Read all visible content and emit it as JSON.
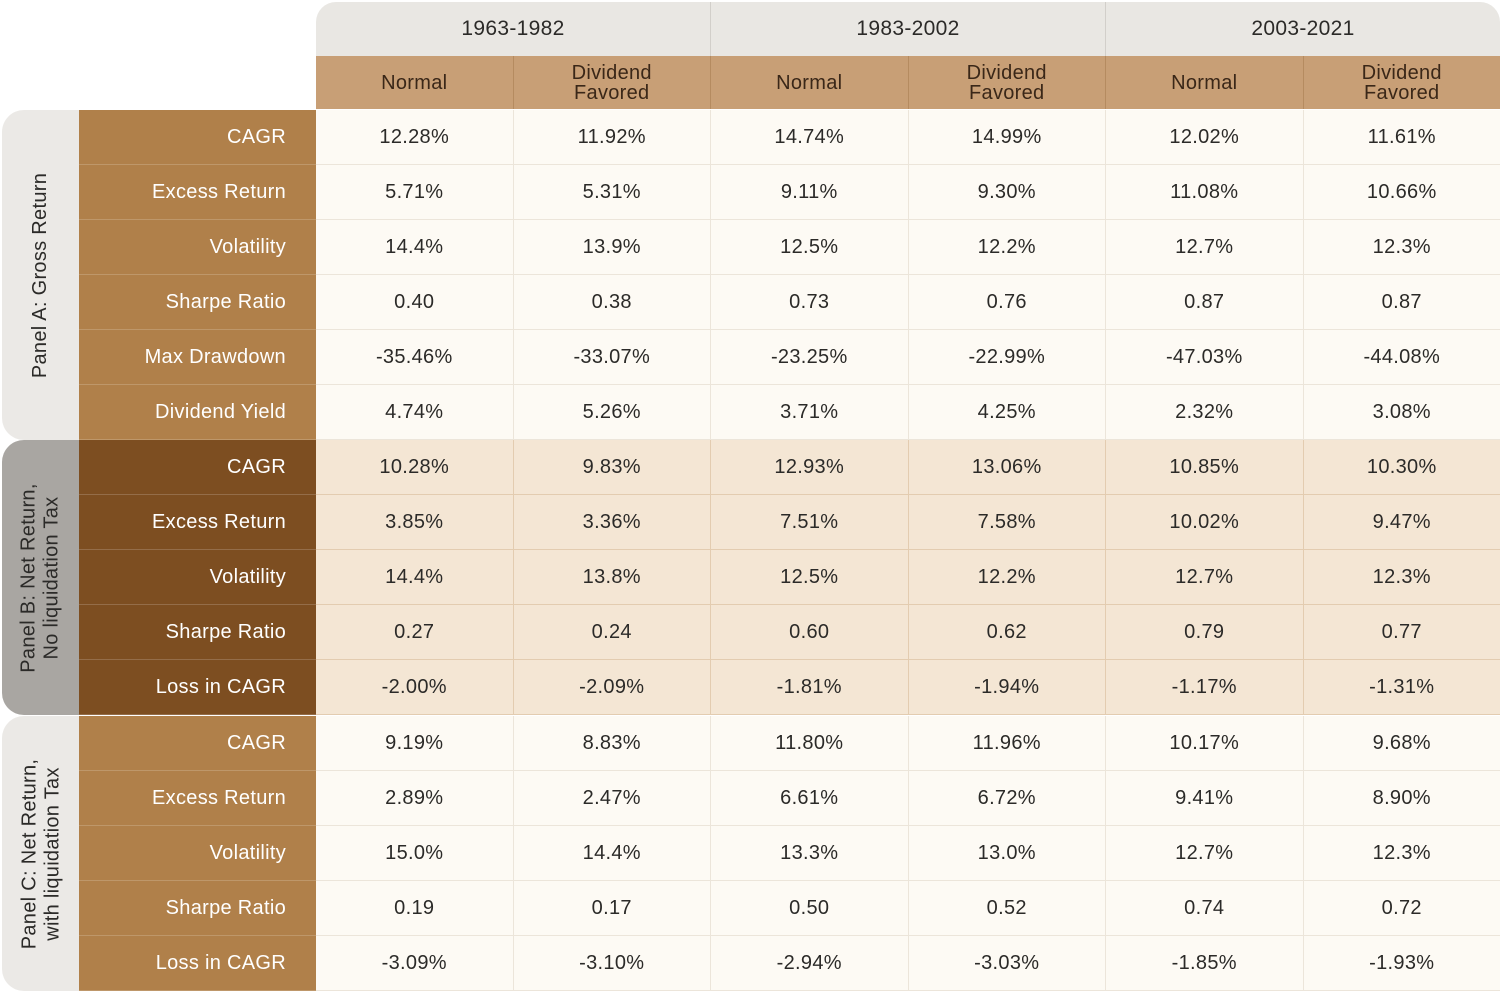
{
  "periods": [
    "1963-1982",
    "1983-2002",
    "2003-2021"
  ],
  "subheaders": [
    [
      "Normal"
    ],
    [
      "Dividend",
      "Favored"
    ],
    [
      "Normal"
    ],
    [
      "Dividend",
      "Favored"
    ],
    [
      "Normal"
    ],
    [
      "Dividend",
      "Favored"
    ]
  ],
  "colors": {
    "panel_a_label_bg": "#ebe9e6",
    "panel_b_label_bg": "#a9a6a2",
    "panel_c_label_bg": "#ebe9e6",
    "row_label_light": "#b0804a",
    "row_label_dark": "#7d4e21",
    "subheader_bg": "#c89f76",
    "period_header_bg": "#e9e7e3"
  },
  "panels": [
    {
      "label": [
        "Panel A: Gross Return"
      ],
      "rows": [
        {
          "label": "CAGR",
          "values": [
            "12.28%",
            "11.92%",
            "14.74%",
            "14.99%",
            "12.02%",
            "11.61%"
          ]
        },
        {
          "label": "Excess Return",
          "values": [
            "5.71%",
            "5.31%",
            "9.11%",
            "9.30%",
            "11.08%",
            "10.66%"
          ]
        },
        {
          "label": "Volatility",
          "values": [
            "14.4%",
            "13.9%",
            "12.5%",
            "12.2%",
            "12.7%",
            "12.3%"
          ]
        },
        {
          "label": "Sharpe Ratio",
          "values": [
            "0.40",
            "0.38",
            "0.73",
            "0.76",
            "0.87",
            "0.87"
          ]
        },
        {
          "label": "Max Drawdown",
          "values": [
            "-35.46%",
            "-33.07%",
            "-23.25%",
            "-22.99%",
            "-47.03%",
            "-44.08%"
          ]
        },
        {
          "label": "Dividend Yield",
          "values": [
            "4.74%",
            "5.26%",
            "3.71%",
            "4.25%",
            "2.32%",
            "3.08%"
          ]
        }
      ]
    },
    {
      "label": [
        "Panel B: Net Return,",
        "No liquidation Tax"
      ],
      "rows": [
        {
          "label": "CAGR",
          "values": [
            "10.28%",
            "9.83%",
            "12.93%",
            "13.06%",
            "10.85%",
            "10.30%"
          ]
        },
        {
          "label": "Excess Return",
          "values": [
            "3.85%",
            "3.36%",
            "7.51%",
            "7.58%",
            "10.02%",
            "9.47%"
          ]
        },
        {
          "label": "Volatility",
          "values": [
            "14.4%",
            "13.8%",
            "12.5%",
            "12.2%",
            "12.7%",
            "12.3%"
          ]
        },
        {
          "label": "Sharpe Ratio",
          "values": [
            "0.27",
            "0.24",
            "0.60",
            "0.62",
            "0.79",
            "0.77"
          ]
        },
        {
          "label": "Loss in CAGR",
          "values": [
            "-2.00%",
            "-2.09%",
            "-1.81%",
            "-1.94%",
            "-1.17%",
            "-1.31%"
          ]
        }
      ]
    },
    {
      "label": [
        "Panel C: Net Return,",
        "with liquidation Tax"
      ],
      "rows": [
        {
          "label": "CAGR",
          "values": [
            "9.19%",
            "8.83%",
            "11.80%",
            "11.96%",
            "10.17%",
            "9.68%"
          ]
        },
        {
          "label": "Excess Return",
          "values": [
            "2.89%",
            "2.47%",
            "6.61%",
            "6.72%",
            "9.41%",
            "8.90%"
          ]
        },
        {
          "label": "Volatility",
          "values": [
            "15.0%",
            "14.4%",
            "13.3%",
            "13.0%",
            "12.7%",
            "12.3%"
          ]
        },
        {
          "label": "Sharpe Ratio",
          "values": [
            "0.19",
            "0.17",
            "0.50",
            "0.52",
            "0.74",
            "0.72"
          ]
        },
        {
          "label": "Loss in CAGR",
          "values": [
            "-3.09%",
            "-3.10%",
            "-2.94%",
            "-3.03%",
            "-1.85%",
            "-1.93%"
          ]
        }
      ]
    }
  ]
}
